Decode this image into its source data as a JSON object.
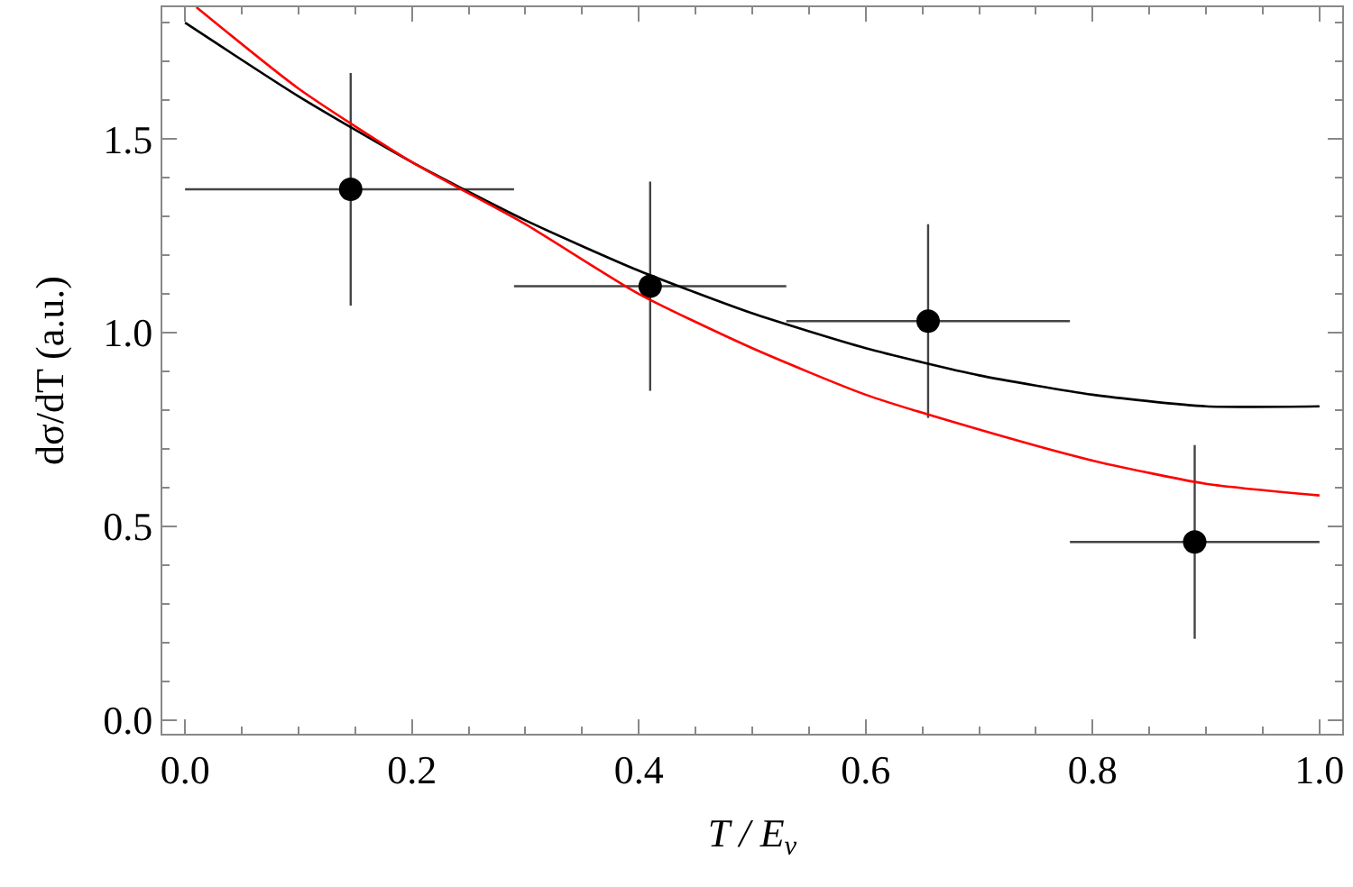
{
  "chart_data": {
    "type": "scatter",
    "xlabel": "T / E$_{ν}$",
    "ylabel": "dσ/dT (a.u.)",
    "xlim": [
      -0.02,
      1.02
    ],
    "ylim": [
      -0.035,
      1.84
    ],
    "xticks": [
      {
        "value": 0,
        "label": "0.0"
      },
      0.2,
      0.4,
      0.6,
      0.8,
      {
        "value": 1,
        "label": "1.0"
      }
    ],
    "yticks": [
      {
        "value": 0,
        "label": "0.0"
      },
      0.5,
      {
        "value": 1,
        "label": "1.0"
      },
      1.5
    ],
    "series": [
      {
        "color": "#000000",
        "marker": "circle",
        "x": [
          0.146,
          0.41,
          0.655,
          0.89
        ],
        "values": [
          1.37,
          1.12,
          1.03,
          0.46
        ],
        "errors": [
          [
            1.07,
            1.67
          ],
          [
            0.85,
            1.39
          ],
          [
            0.78,
            1.28
          ],
          [
            0.21,
            0.71
          ]
        ],
        "xerrors": [
          [
            0.0,
            0.29
          ],
          [
            0.29,
            0.53
          ],
          [
            0.53,
            0.78
          ],
          [
            0.78,
            1.0
          ]
        ]
      },
      {
        "type": "line",
        "color": "#000000",
        "marker": "none",
        "line_style": "solid",
        "x": [
          0,
          0.1,
          0.2,
          0.3,
          0.4,
          0.5,
          0.6,
          0.7,
          0.8,
          0.9,
          1.0
        ],
        "values": [
          1.8,
          1.61,
          1.44,
          1.29,
          1.16,
          1.05,
          0.96,
          0.89,
          0.84,
          0.81,
          0.81
        ]
      },
      {
        "type": "line",
        "color": "#ff0000",
        "marker": "none",
        "line_style": "solid",
        "x": [
          0.01,
          0.1,
          0.2,
          0.3,
          0.4,
          0.5,
          0.6,
          0.7,
          0.8,
          0.9,
          1.0
        ],
        "values": [
          1.84,
          1.63,
          1.44,
          1.28,
          1.1,
          0.96,
          0.84,
          0.75,
          0.67,
          0.61,
          0.58
        ]
      }
    ]
  }
}
